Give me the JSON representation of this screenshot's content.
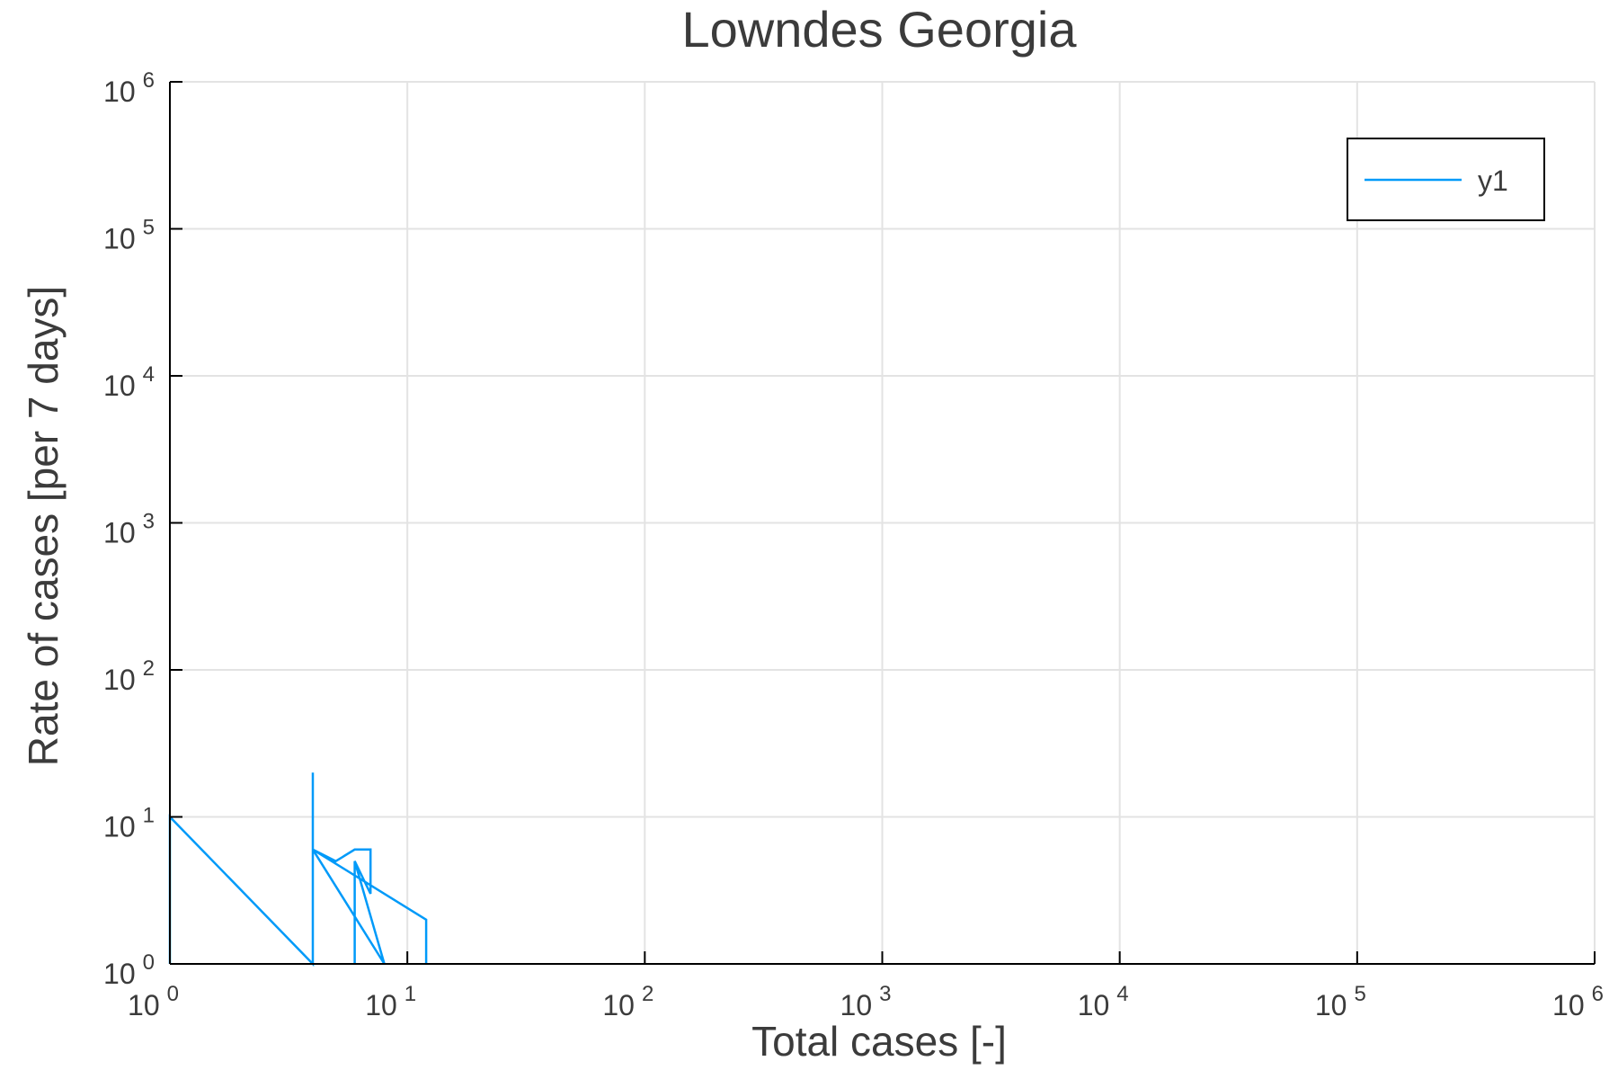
{
  "chart_data": {
    "type": "line",
    "title": "Lowndes Georgia",
    "xlabel": "Total cases [-]",
    "ylabel": "Rate of cases [per 7 days]",
    "xscale": "log",
    "yscale": "log",
    "xlim": [
      1,
      1000000
    ],
    "ylim": [
      1,
      1000000
    ],
    "grid": true,
    "legend_position": "top-right",
    "x_ticks": [
      {
        "base": "10",
        "exp": "0",
        "value": 1
      },
      {
        "base": "10",
        "exp": "1",
        "value": 10
      },
      {
        "base": "10",
        "exp": "2",
        "value": 100
      },
      {
        "base": "10",
        "exp": "3",
        "value": 1000
      },
      {
        "base": "10",
        "exp": "4",
        "value": 10000
      },
      {
        "base": "10",
        "exp": "5",
        "value": 100000
      },
      {
        "base": "10",
        "exp": "6",
        "value": 1000000
      }
    ],
    "y_ticks": [
      {
        "base": "10",
        "exp": "0",
        "value": 1
      },
      {
        "base": "10",
        "exp": "1",
        "value": 10
      },
      {
        "base": "10",
        "exp": "2",
        "value": 100
      },
      {
        "base": "10",
        "exp": "3",
        "value": 1000
      },
      {
        "base": "10",
        "exp": "4",
        "value": 10000
      },
      {
        "base": "10",
        "exp": "5",
        "value": 100000
      },
      {
        "base": "10",
        "exp": "6",
        "value": 1000000
      }
    ],
    "series": [
      {
        "name": "y1",
        "color": "#009af9",
        "x": [
          1,
          1,
          4,
          4,
          4,
          4,
          5,
          6,
          7,
          7,
          6,
          6,
          6,
          8,
          8,
          4,
          12,
          12
        ],
        "y": [
          1,
          10,
          1,
          20,
          4,
          6,
          5,
          6,
          6,
          3,
          5,
          1,
          5,
          1,
          1,
          6,
          2,
          1
        ]
      }
    ]
  }
}
